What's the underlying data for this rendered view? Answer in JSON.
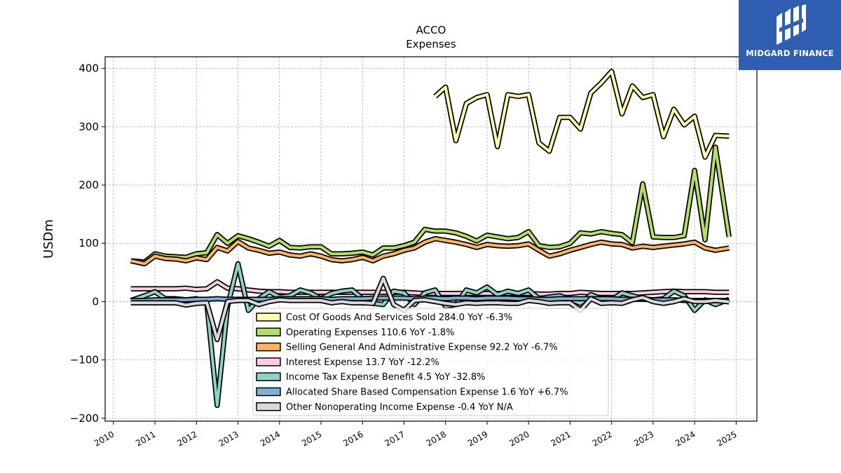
{
  "chart_data": {
    "type": "line",
    "title": "ACCO",
    "subtitle": "Expenses",
    "ylabel": "USDm",
    "xlabel": "",
    "ylim": [
      -205,
      420
    ],
    "xlim": [
      2009.8,
      2025.5
    ],
    "yticks": [
      -200,
      -100,
      0,
      100,
      200,
      300,
      400
    ],
    "ytick_labels": [
      "−200",
      "−100",
      "0",
      "100",
      "200",
      "300",
      "400"
    ],
    "xticks": [
      2010,
      2011,
      2012,
      2013,
      2014,
      2015,
      2016,
      2017,
      2018,
      2019,
      2020,
      2021,
      2022,
      2023,
      2024,
      2025
    ],
    "xtick_labels": [
      "2010",
      "2011",
      "2012",
      "2013",
      "2014",
      "2015",
      "2016",
      "2017",
      "2018",
      "2019",
      "2020",
      "2021",
      "2022",
      "2023",
      "2024",
      "2025"
    ],
    "grid": true,
    "legend_position": "lower-center",
    "series": [
      {
        "name": "Cost Of Goods And Services Sold",
        "legend_label": "Cost Of Goods And Services Sold  284.0 YoY -6.3%",
        "color": "#ffffb3",
        "x": [
          2017.75,
          2018.0,
          2018.25,
          2018.5,
          2018.75,
          2019.0,
          2019.25,
          2019.5,
          2019.75,
          2020.0,
          2020.25,
          2020.5,
          2020.75,
          2021.0,
          2021.25,
          2021.5,
          2021.75,
          2022.0,
          2022.25,
          2022.5,
          2022.75,
          2023.0,
          2023.25,
          2023.5,
          2023.75,
          2024.0,
          2024.25,
          2024.5,
          2024.83
        ],
        "y": [
          352,
          368,
          276,
          340,
          350,
          355,
          266,
          355,
          352,
          355,
          272,
          258,
          316,
          316,
          296,
          358,
          375,
          395,
          322,
          370,
          350,
          355,
          283,
          330,
          303,
          318,
          248,
          285,
          284
        ]
      },
      {
        "name": "Operating Expenses",
        "legend_label": "Operating Expenses  110.6 YoY -1.8%",
        "color": "#b3de69",
        "x": [
          2010.42,
          2010.75,
          2011.0,
          2011.25,
          2011.5,
          2011.75,
          2012.0,
          2012.25,
          2012.5,
          2012.75,
          2013.0,
          2013.25,
          2013.5,
          2013.75,
          2014.0,
          2014.25,
          2014.5,
          2014.75,
          2015.0,
          2015.25,
          2015.5,
          2015.75,
          2016.0,
          2016.25,
          2016.5,
          2016.75,
          2017.0,
          2017.25,
          2017.5,
          2017.75,
          2018.0,
          2018.25,
          2018.5,
          2018.75,
          2019.0,
          2019.25,
          2019.5,
          2019.75,
          2020.0,
          2020.25,
          2020.5,
          2020.75,
          2021.0,
          2021.25,
          2021.5,
          2021.75,
          2022.0,
          2022.25,
          2022.5,
          2022.75,
          2023.0,
          2023.25,
          2023.5,
          2023.75,
          2024.0,
          2024.25,
          2024.5,
          2024.83
        ],
        "y": [
          70,
          68,
          82,
          78,
          77,
          76,
          82,
          84,
          115,
          100,
          113,
          108,
          102,
          95,
          105,
          93,
          92,
          94,
          94,
          82,
          82,
          83,
          85,
          80,
          92,
          92,
          96,
          102,
          124,
          121,
          121,
          118,
          112,
          104,
          114,
          111,
          108,
          110,
          120,
          96,
          93,
          94,
          100,
          118,
          116,
          120,
          117,
          115,
          101,
          202,
          111,
          110,
          110,
          113,
          225,
          106,
          265,
          111
        ]
      },
      {
        "name": "Selling General And Administrative Expense",
        "legend_label": "Selling General And Administrative Expense  92.2 YoY -6.7%",
        "color": "#fdb462",
        "x": [
          2010.42,
          2010.75,
          2011.0,
          2011.25,
          2011.5,
          2011.75,
          2012.0,
          2012.25,
          2012.5,
          2012.75,
          2013.0,
          2013.25,
          2013.5,
          2013.75,
          2014.0,
          2014.25,
          2014.5,
          2014.75,
          2015.0,
          2015.25,
          2015.5,
          2015.75,
          2016.0,
          2016.25,
          2016.5,
          2016.75,
          2017.0,
          2017.25,
          2017.5,
          2017.75,
          2018.0,
          2018.25,
          2018.5,
          2018.75,
          2019.0,
          2019.25,
          2019.5,
          2019.75,
          2020.0,
          2020.25,
          2020.5,
          2020.75,
          2021.0,
          2021.25,
          2021.5,
          2021.75,
          2022.0,
          2022.25,
          2022.5,
          2022.75,
          2023.0,
          2023.25,
          2023.5,
          2023.75,
          2024.0,
          2024.25,
          2024.5,
          2024.83
        ],
        "y": [
          70,
          65,
          78,
          74,
          73,
          70,
          75,
          72,
          93,
          87,
          103,
          92,
          88,
          83,
          85,
          80,
          78,
          82,
          78,
          72,
          70,
          72,
          76,
          70,
          78,
          82,
          88,
          92,
          102,
          108,
          105,
          102,
          98,
          93,
          98,
          96,
          95,
          96,
          99,
          88,
          78,
          82,
          88,
          93,
          98,
          102,
          99,
          98,
          92,
          95,
          93,
          95,
          97,
          99,
          102,
          92,
          88,
          92
        ]
      },
      {
        "name": "Interest Expense",
        "legend_label": "Interest Expense  13.7 YoY -12.2%",
        "color": "#fccde5",
        "x": [
          2010.42,
          2010.75,
          2011.0,
          2011.25,
          2011.5,
          2011.75,
          2012.0,
          2012.25,
          2012.5,
          2012.75,
          2013.0,
          2013.25,
          2013.5,
          2013.75,
          2014.0,
          2014.25,
          2014.5,
          2014.75,
          2015.0,
          2015.25,
          2015.5,
          2015.75,
          2016.0,
          2016.25,
          2016.5,
          2016.75,
          2017.0,
          2017.25,
          2017.5,
          2017.75,
          2018.0,
          2018.25,
          2018.5,
          2018.75,
          2019.0,
          2019.25,
          2019.5,
          2019.75,
          2020.0,
          2020.25,
          2020.5,
          2020.75,
          2021.0,
          2021.25,
          2021.5,
          2021.75,
          2022.0,
          2022.25,
          2022.5,
          2022.75,
          2023.0,
          2023.25,
          2023.5,
          2023.75,
          2024.0,
          2024.25,
          2024.5,
          2024.83
        ],
        "y": [
          22,
          22,
          22,
          22,
          22,
          23,
          21,
          22,
          34,
          23,
          22,
          20,
          18,
          17,
          17,
          16,
          16,
          16,
          16,
          16,
          16,
          16,
          16,
          16,
          16,
          16,
          16,
          15,
          14,
          14,
          14,
          14,
          14,
          14,
          14,
          14,
          14,
          14,
          14,
          13,
          13,
          14,
          14,
          16,
          15,
          14,
          14,
          14,
          14,
          15,
          16,
          17,
          18,
          17,
          17,
          17,
          16,
          16
        ]
      },
      {
        "name": "Income Tax Expense Benefit",
        "legend_label": "Income Tax Expense Benefit  4.5 YoY -32.8%",
        "color": "#8dd3c7",
        "x": [
          2010.42,
          2010.75,
          2011.0,
          2011.25,
          2011.5,
          2011.75,
          2012.0,
          2012.25,
          2012.5,
          2012.75,
          2013.0,
          2013.25,
          2013.5,
          2013.75,
          2014.0,
          2014.25,
          2014.5,
          2014.75,
          2015.0,
          2015.25,
          2015.5,
          2015.75,
          2016.0,
          2016.25,
          2016.5,
          2016.75,
          2017.0,
          2017.25,
          2017.5,
          2017.75,
          2018.0,
          2018.25,
          2018.5,
          2018.75,
          2019.0,
          2019.25,
          2019.5,
          2019.75,
          2020.0,
          2020.25,
          2020.5,
          2020.75,
          2021.0,
          2021.25,
          2021.5,
          2021.75,
          2022.0,
          2022.25,
          2022.5,
          2022.75,
          2023.0,
          2023.25,
          2023.5,
          2023.75,
          2024.0,
          2024.25,
          2024.5,
          2024.83
        ],
        "y": [
          2,
          10,
          17,
          5,
          5,
          3,
          5,
          -3,
          -178,
          -8,
          65,
          -15,
          5,
          17,
          8,
          10,
          20,
          15,
          5,
          14,
          18,
          20,
          5,
          -3,
          -5,
          18,
          15,
          -5,
          15,
          20,
          -8,
          -5,
          20,
          15,
          25,
          12,
          18,
          14,
          20,
          5,
          8,
          10,
          4,
          -3,
          12,
          5,
          3,
          15,
          10,
          5,
          3,
          5,
          18,
          10,
          -15,
          3,
          -5,
          4
        ]
      },
      {
        "name": "Allocated Share Based Compensation Expense",
        "legend_label": "Allocated Share Based Compensation Expense  1.6 YoY +6.7%",
        "color": "#80b1d3",
        "x": [
          2010.42,
          2010.75,
          2011.0,
          2011.25,
          2011.5,
          2011.75,
          2012.0,
          2012.25,
          2012.5,
          2012.75,
          2013.0,
          2013.25,
          2013.5,
          2013.75,
          2014.0,
          2014.25,
          2014.5,
          2014.75,
          2015.0,
          2015.25,
          2015.5,
          2015.75,
          2016.0,
          2016.25,
          2016.5,
          2016.75,
          2017.0,
          2017.25,
          2017.5,
          2017.75,
          2018.0,
          2018.25,
          2018.5,
          2018.75,
          2019.0,
          2019.25,
          2019.5,
          2019.75,
          2020.0,
          2020.25,
          2020.5,
          2020.75,
          2021.0,
          2021.25,
          2021.5,
          2021.75,
          2022.0,
          2022.25,
          2022.5,
          2022.75,
          2023.0,
          2023.25,
          2023.5,
          2023.75,
          2024.0,
          2024.25,
          2024.5,
          2024.83
        ],
        "y": [
          2,
          2,
          3,
          3,
          3,
          3,
          4,
          4,
          5,
          4,
          4,
          4,
          4,
          4,
          5,
          5,
          5,
          5,
          5,
          4,
          5,
          5,
          5,
          6,
          6,
          6,
          6,
          5,
          6,
          6,
          5,
          6,
          6,
          5,
          6,
          6,
          6,
          5,
          5,
          4,
          4,
          5,
          5,
          5,
          5,
          5,
          5,
          4,
          4,
          4,
          3,
          3,
          3,
          2,
          2,
          2,
          2,
          2
        ]
      },
      {
        "name": "Other Nonoperating Income Expense",
        "legend_label": "Other Nonoperating Income Expense  -0.4 YoY N/A",
        "color": "#d9d9d9",
        "x": [
          2010.42,
          2010.75,
          2011.0,
          2011.25,
          2011.5,
          2011.75,
          2012.0,
          2012.25,
          2012.5,
          2012.75,
          2013.0,
          2013.25,
          2013.5,
          2013.75,
          2014.0,
          2014.25,
          2014.5,
          2014.75,
          2015.0,
          2015.25,
          2015.5,
          2015.75,
          2016.0,
          2016.25,
          2016.5,
          2016.75,
          2017.0,
          2017.25,
          2017.5,
          2017.75,
          2018.0,
          2018.25,
          2018.5,
          2018.75,
          2019.0,
          2019.25,
          2019.5,
          2019.75,
          2020.0,
          2020.25,
          2020.5,
          2020.75,
          2021.0,
          2021.25,
          2021.5,
          2021.75,
          2022.0,
          2022.25,
          2022.5,
          2022.75,
          2023.0,
          2023.25,
          2023.5,
          2023.75,
          2024.0,
          2024.25,
          2024.5,
          2024.83
        ],
        "y": [
          -2,
          -2,
          -2,
          -2,
          -2,
          -6,
          -3,
          -2,
          -65,
          0,
          2,
          2,
          -5,
          0,
          3,
          2,
          2,
          2,
          2,
          -2,
          0,
          -2,
          -2,
          -3,
          40,
          -5,
          -15,
          2,
          3,
          0,
          -3,
          -5,
          -2,
          -3,
          -2,
          -2,
          -3,
          -3,
          2,
          0,
          -3,
          -2,
          -2,
          -15,
          5,
          -3,
          -2,
          -3,
          3,
          7,
          0,
          -3,
          0,
          5,
          0,
          0,
          2,
          -0.4
        ]
      }
    ]
  },
  "branding": {
    "logo_text": "MIDGARD FINANCE"
  }
}
